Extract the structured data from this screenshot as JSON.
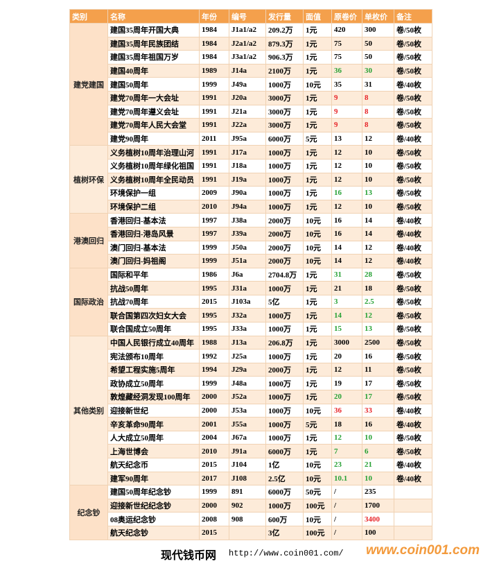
{
  "header": {
    "columns": [
      "类别",
      "名称",
      "年份",
      "编号",
      "发行量",
      "面值",
      "原卷价",
      "单枚价",
      "备注"
    ]
  },
  "groups": [
    {
      "category": "建党建国",
      "rows": [
        {
          "name": "建国35周年开国大典",
          "year": "1984",
          "code": "J1a1/a2",
          "issue": "209.2万",
          "face": "1元",
          "roll": "420",
          "unit": "300",
          "note": "卷/50枚"
        },
        {
          "name": "建国35周年民族团结",
          "year": "1984",
          "code": "J2a1/a2",
          "issue": "879.3万",
          "face": "1元",
          "roll": "75",
          "unit": "50",
          "note": "卷/50枚"
        },
        {
          "name": "建国35周年祖国万岁",
          "year": "1984",
          "code": "J3a1/a2",
          "issue": "906.3万",
          "face": "1元",
          "roll": "75",
          "unit": "50",
          "note": "卷/50枚"
        },
        {
          "name": "建国40周年",
          "year": "1989",
          "code": "J14a",
          "issue": "2100万",
          "face": "1元",
          "roll": "36",
          "unit": "30",
          "note": "卷/50枚",
          "roll_color": "#27a135",
          "unit_color": "#27a135"
        },
        {
          "name": "建国50周年",
          "year": "1999",
          "code": "J49a",
          "issue": "1000万",
          "face": "10元",
          "roll": "35",
          "unit": "31",
          "note": "卷/40枚"
        },
        {
          "name": "建党70周年一大会址",
          "year": "1991",
          "code": "J20a",
          "issue": "3000万",
          "face": "1元",
          "roll": "9",
          "unit": "8",
          "note": "卷/50枚",
          "roll_color": "#e8262a",
          "unit_color": "#e8262a"
        },
        {
          "name": "建党70周年遵义会址",
          "year": "1991",
          "code": "J21a",
          "issue": "3000万",
          "face": "1元",
          "roll": "9",
          "unit": "8",
          "note": "卷/50枚",
          "roll_color": "#e8262a",
          "unit_color": "#e8262a"
        },
        {
          "name": "建党70周年人民大会堂",
          "year": "1991",
          "code": "J22a",
          "issue": "3000万",
          "face": "1元",
          "roll": "9",
          "unit": "8",
          "note": "卷/50枚",
          "roll_color": "#e8262a",
          "unit_color": "#e8262a"
        },
        {
          "name": "建党90周年",
          "year": "2011",
          "code": "J95a",
          "issue": "6000万",
          "face": "5元",
          "roll": "13",
          "unit": "12",
          "note": "卷/40枚"
        }
      ]
    },
    {
      "category": "植树环保",
      "rows": [
        {
          "name": "义务植树10周年治理山河",
          "year": "1991",
          "code": "J17a",
          "issue": "1000万",
          "face": "1元",
          "roll": "12",
          "unit": "10",
          "note": "卷/50枚"
        },
        {
          "name": "义务植树10周年绿化祖国",
          "year": "1991",
          "code": "J18a",
          "issue": "1000万",
          "face": "1元",
          "roll": "12",
          "unit": "10",
          "note": "卷/50枚"
        },
        {
          "name": "义务植树10周年全民动员",
          "year": "1991",
          "code": "J19a",
          "issue": "1000万",
          "face": "1元",
          "roll": "12",
          "unit": "10",
          "note": "卷/50枚"
        },
        {
          "name": "环境保护一组",
          "year": "2009",
          "code": "J90a",
          "issue": "1000万",
          "face": "1元",
          "roll": "16",
          "unit": "13",
          "note": "卷/50枚",
          "roll_color": "#27a135",
          "unit_color": "#27a135"
        },
        {
          "name": "环境保护二组",
          "year": "2010",
          "code": "J94a",
          "issue": "1000万",
          "face": "1元",
          "roll": "12",
          "unit": "10",
          "note": "卷/50枚"
        }
      ]
    },
    {
      "category": "港澳回归",
      "rows": [
        {
          "name": "香港回归-基本法",
          "year": "1997",
          "code": "J38a",
          "issue": "2000万",
          "face": "10元",
          "roll": "16",
          "unit": "14",
          "note": "卷/40枚"
        },
        {
          "name": "香港回归-港岛风景",
          "year": "1997",
          "code": "J39a",
          "issue": "2000万",
          "face": "10元",
          "roll": "16",
          "unit": "14",
          "note": "卷/40枚"
        },
        {
          "name": "澳门回归-基本法",
          "year": "1999",
          "code": "J50a",
          "issue": "2000万",
          "face": "10元",
          "roll": "14",
          "unit": "12",
          "note": "卷/40枚"
        },
        {
          "name": "澳门回归-妈祖阁",
          "year": "1999",
          "code": "J51a",
          "issue": "2000万",
          "face": "10元",
          "roll": "14",
          "unit": "12",
          "note": "卷/40枚"
        }
      ]
    },
    {
      "category": "国际政治",
      "rows": [
        {
          "name": "国际和平年",
          "year": "1986",
          "code": "J6a",
          "issue": "2704.8万",
          "face": "1元",
          "roll": "31",
          "unit": "28",
          "note": "卷/50枚",
          "roll_color": "#27a135",
          "unit_color": "#27a135"
        },
        {
          "name": "抗战50周年",
          "year": "1995",
          "code": "J31a",
          "issue": "1000万",
          "face": "1元",
          "roll": "21",
          "unit": "18",
          "note": "卷/50枚"
        },
        {
          "name": "抗战70周年",
          "year": "2015",
          "code": "J103a",
          "issue": "5亿",
          "face": "1元",
          "roll": "3",
          "unit": "2.5",
          "note": "卷/50枚",
          "roll_color": "#27a135",
          "unit_color": "#27a135"
        },
        {
          "name": "联合国第四次妇女大会",
          "year": "1995",
          "code": "J32a",
          "issue": "1000万",
          "face": "1元",
          "roll": "14",
          "unit": "12",
          "note": "卷/50枚",
          "roll_color": "#27a135",
          "unit_color": "#27a135"
        },
        {
          "name": "联合国成立50周年",
          "year": "1995",
          "code": "J33a",
          "issue": "1000万",
          "face": "1元",
          "roll": "15",
          "unit": "13",
          "note": "卷/50枚",
          "roll_color": "#27a135",
          "unit_color": "#27a135"
        }
      ]
    },
    {
      "category": "其他类别",
      "rows": [
        {
          "name": "中国人民银行成立40周年",
          "year": "1988",
          "code": "J13a",
          "issue": "206.8万",
          "face": "1元",
          "roll": "3000",
          "unit": "2500",
          "note": "卷/50枚"
        },
        {
          "name": "宪法颁布10周年",
          "year": "1992",
          "code": "J25a",
          "issue": "1000万",
          "face": "1元",
          "roll": "20",
          "unit": "16",
          "note": "卷/50枚"
        },
        {
          "name": "希望工程实施5周年",
          "year": "1994",
          "code": "J29a",
          "issue": "2000万",
          "face": "1元",
          "roll": "12",
          "unit": "11",
          "note": "卷/50枚"
        },
        {
          "name": "政协成立50周年",
          "year": "1999",
          "code": "J48a",
          "issue": "1000万",
          "face": "1元",
          "roll": "19",
          "unit": "17",
          "note": "卷/50枚"
        },
        {
          "name": "敦煌藏经洞发现100周年",
          "year": "2000",
          "code": "J52a",
          "issue": "1000万",
          "face": "1元",
          "roll": "20",
          "unit": "17",
          "note": "卷/50枚",
          "roll_color": "#27a135",
          "unit_color": "#27a135"
        },
        {
          "name": "迎接新世纪",
          "year": "2000",
          "code": "J53a",
          "issue": "1000万",
          "face": "10元",
          "roll": "36",
          "unit": "33",
          "note": "卷/40枚",
          "roll_color": "#e8262a",
          "unit_color": "#e8262a"
        },
        {
          "name": "辛亥革命90周年",
          "year": "2001",
          "code": "J55a",
          "issue": "1000万",
          "face": "5元",
          "roll": "18",
          "unit": "16",
          "note": "卷/40枚"
        },
        {
          "name": "人大成立50周年",
          "year": "2004",
          "code": "J67a",
          "issue": "1000万",
          "face": "1元",
          "roll": "12",
          "unit": "10",
          "note": "卷/50枚",
          "roll_color": "#27a135",
          "unit_color": "#27a135"
        },
        {
          "name": "上海世博会",
          "year": "2010",
          "code": "J91a",
          "issue": "6000万",
          "face": "1元",
          "roll": "7",
          "unit": "6",
          "note": "卷/50枚",
          "roll_color": "#27a135",
          "unit_color": "#27a135"
        },
        {
          "name": "航天纪念币",
          "year": "2015",
          "code": "J104",
          "issue": "1亿",
          "face": "10元",
          "roll": "23",
          "unit": "21",
          "note": "卷/40枚",
          "roll_color": "#27a135",
          "unit_color": "#27a135"
        },
        {
          "name": "建军90周年",
          "year": "2017",
          "code": "J108",
          "issue": "2.5亿",
          "face": "10元",
          "roll": "10.1",
          "unit": "10",
          "note": "卷/40枚",
          "roll_color": "#27a135",
          "unit_color": "#27a135"
        }
      ]
    },
    {
      "category": "纪念钞",
      "rows": [
        {
          "name": "建国50周年纪念钞",
          "year": "1999",
          "code": "891",
          "issue": "6000万",
          "face": "50元",
          "roll": "/",
          "unit": "235"
        },
        {
          "name": "迎接新世纪纪念钞",
          "year": "2000",
          "code": "902",
          "issue": "1000万",
          "face": "100元",
          "roll": "/",
          "unit": "1700"
        },
        {
          "name": "08奥运纪念钞",
          "year": "2008",
          "code": "908",
          "issue": "600万",
          "face": "10元",
          "roll": "/",
          "unit": "3400",
          "unit_color": "#e8262a"
        },
        {
          "name": "航天纪念钞",
          "year": "2015",
          "issue": "3亿",
          "face": "100元",
          "roll": "/",
          "unit": "100"
        }
      ]
    }
  ],
  "footer": {
    "site": "现代钱币网",
    "url": "http://www.coin001.com/",
    "watermark": "www.coin001.com"
  }
}
